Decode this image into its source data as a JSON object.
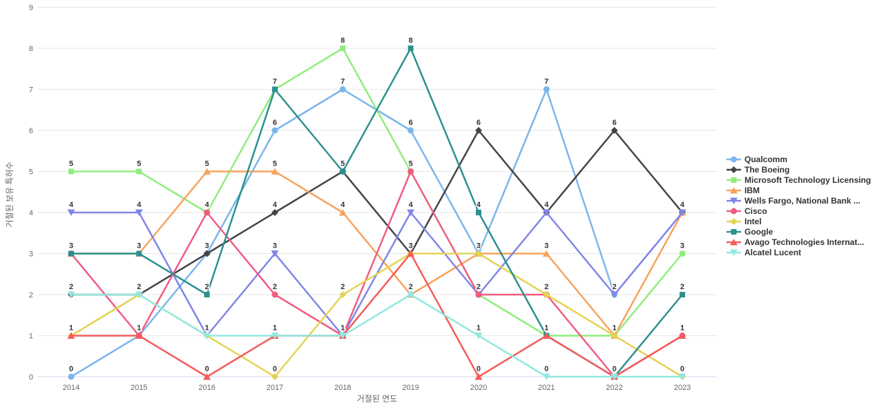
{
  "chart_data": {
    "type": "line",
    "title": "",
    "xlabel": "거절된 연도",
    "ylabel": "거절된 보유 특허수",
    "categories": [
      "2014",
      "2015",
      "2016",
      "2017",
      "2018",
      "2019",
      "2020",
      "2021",
      "2022",
      "2023"
    ],
    "ylim": [
      0,
      9
    ],
    "y_tick_step": 1,
    "grid": "horizontal",
    "legend_position": "right",
    "data_labels": true,
    "series": [
      {
        "name": "Qualcomm",
        "color": "#7cb5ec",
        "symbol": "circle",
        "values": [
          0,
          1,
          3,
          6,
          7,
          6,
          3,
          7,
          2,
          4
        ]
      },
      {
        "name": "The Boeing",
        "color": "#434348",
        "symbol": "diamond",
        "values": [
          2,
          2,
          3,
          4,
          5,
          3,
          6,
          4,
          6,
          4
        ]
      },
      {
        "name": "Microsoft Technology Licensing",
        "color": "#90ed7d",
        "symbol": "square",
        "values": [
          5,
          5,
          4,
          7,
          8,
          5,
          2,
          1,
          1,
          3
        ]
      },
      {
        "name": "IBM",
        "color": "#f7a35c",
        "symbol": "triangle",
        "values": [
          3,
          3,
          5,
          5,
          4,
          2,
          3,
          3,
          1,
          4
        ]
      },
      {
        "name": "Wells Fargo, National Bank ...",
        "color": "#8085e9",
        "symbol": "triangle-down",
        "values": [
          4,
          4,
          1,
          3,
          1,
          4,
          2,
          4,
          2,
          4
        ]
      },
      {
        "name": "Cisco",
        "color": "#f15c80",
        "symbol": "circle",
        "values": [
          3,
          1,
          4,
          2,
          1,
          5,
          2,
          2,
          0,
          1
        ]
      },
      {
        "name": "Intel",
        "color": "#e4d354",
        "symbol": "diamond",
        "values": [
          1,
          2,
          1,
          0,
          2,
          3,
          3,
          2,
          1,
          0
        ]
      },
      {
        "name": "Google",
        "color": "#2b908f",
        "symbol": "square",
        "values": [
          3,
          3,
          2,
          7,
          5,
          8,
          4,
          1,
          0,
          2
        ]
      },
      {
        "name": "Avago Technologies Internat...",
        "color": "#f45b5b",
        "symbol": "triangle",
        "values": [
          1,
          1,
          0,
          1,
          1,
          3,
          0,
          1,
          0,
          1
        ]
      },
      {
        "name": "Alcatel Lucent",
        "color": "#91e8e1",
        "symbol": "triangle-down",
        "values": [
          2,
          2,
          1,
          1,
          1,
          2,
          1,
          0,
          0,
          0
        ]
      }
    ]
  }
}
